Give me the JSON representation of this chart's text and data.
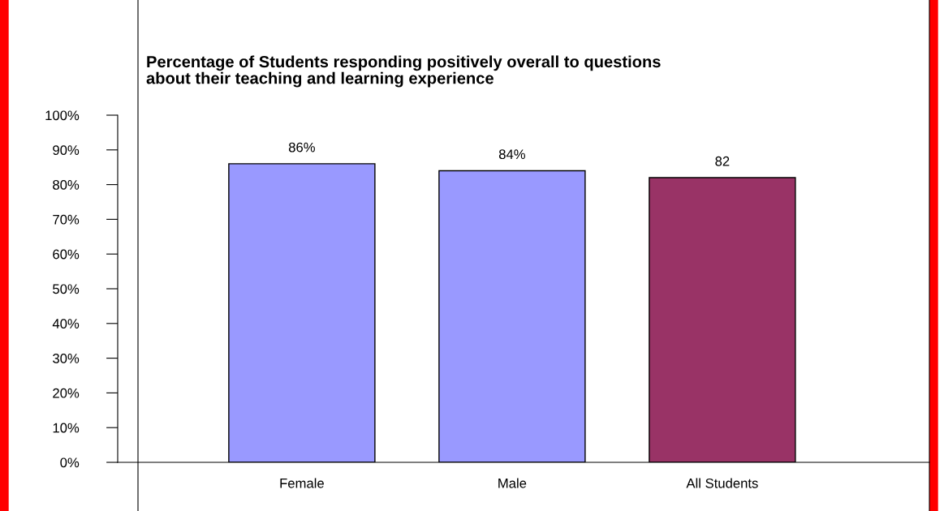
{
  "chart_data": {
    "type": "bar",
    "title": "Percentage of Students responding positively overall to questions\nabout their teaching and learning experience",
    "categories": [
      "Female",
      "Male",
      "All Students"
    ],
    "values": [
      86,
      84,
      82
    ],
    "colors": [
      "#9999ff",
      "#9999ff",
      "#993366"
    ],
    "value_labels": [
      "86%",
      "84%",
      "82"
    ],
    "ylim": [
      0,
      100
    ],
    "yticks": [
      {
        "value": 0,
        "label": "0%"
      },
      {
        "value": 10,
        "label": "10%"
      },
      {
        "value": 20,
        "label": "20%"
      },
      {
        "value": 30,
        "label": "30%"
      },
      {
        "value": 40,
        "label": "40%"
      },
      {
        "value": 50,
        "label": "50%"
      },
      {
        "value": 60,
        "label": "60%"
      },
      {
        "value": 70,
        "label": "70%"
      },
      {
        "value": 80,
        "label": "80%"
      },
      {
        "value": 90,
        "label": "90%"
      },
      {
        "value": 100,
        "label": "100%"
      }
    ],
    "grid": false,
    "legend": false
  }
}
